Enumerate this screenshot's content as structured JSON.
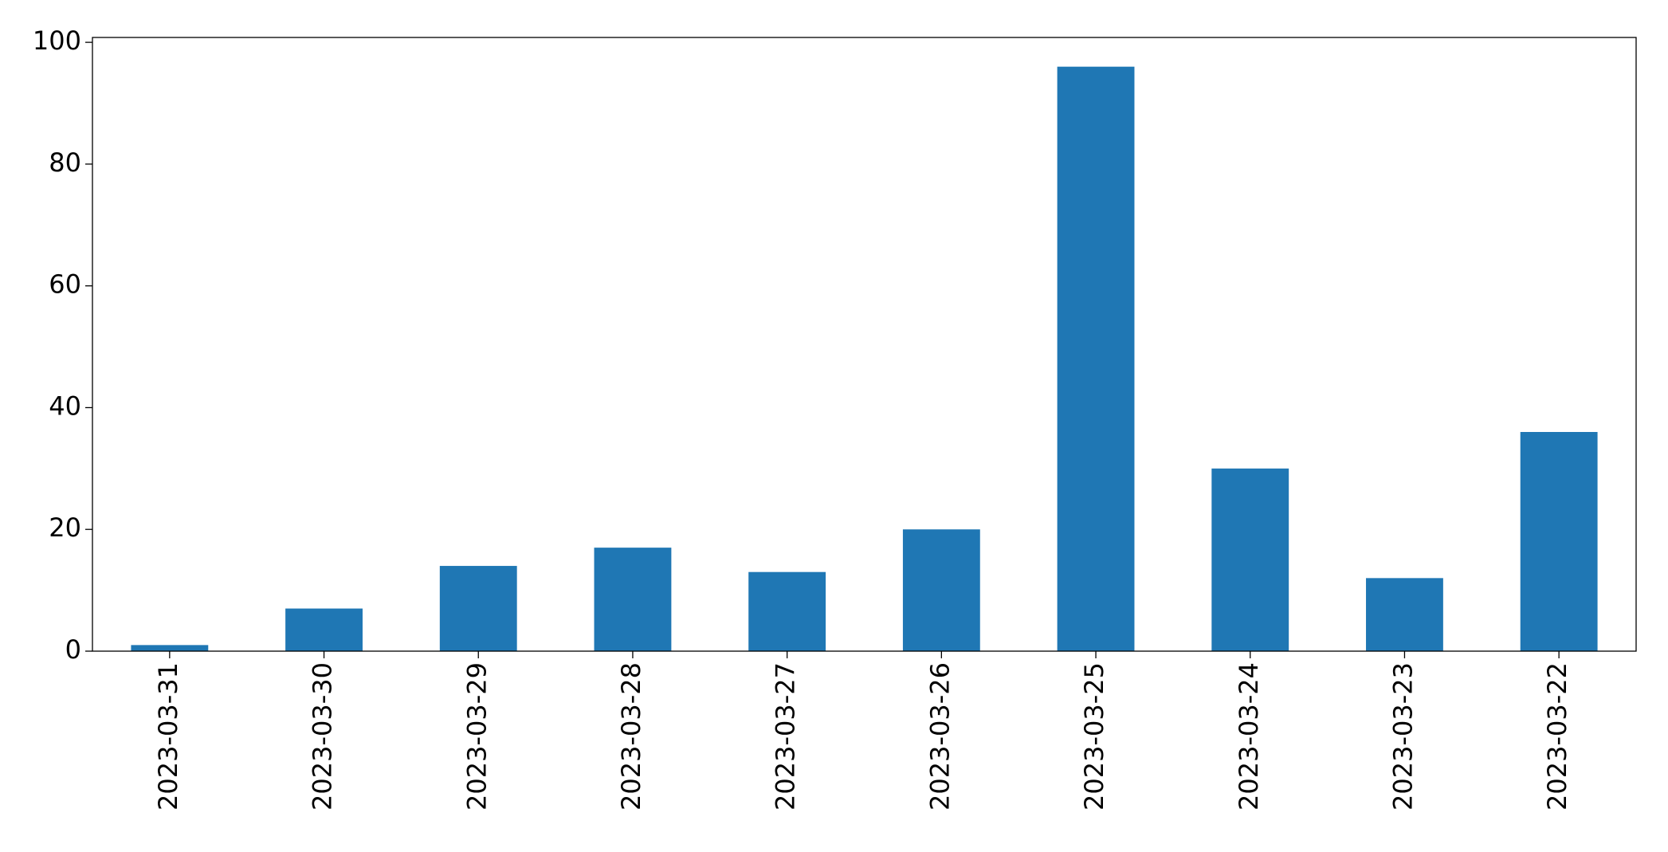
{
  "chart_data": {
    "type": "bar",
    "categories": [
      "2023-03-31",
      "2023-03-30",
      "2023-03-29",
      "2023-03-28",
      "2023-03-27",
      "2023-03-26",
      "2023-03-25",
      "2023-03-24",
      "2023-03-23",
      "2023-03-22"
    ],
    "values": [
      1,
      7,
      14,
      17,
      13,
      20,
      96,
      30,
      12,
      36
    ],
    "color": "#1f77b4",
    "ylim": [
      0,
      100.8
    ],
    "yticks": [
      0,
      20,
      40,
      60,
      80,
      100
    ],
    "grid": false
  }
}
